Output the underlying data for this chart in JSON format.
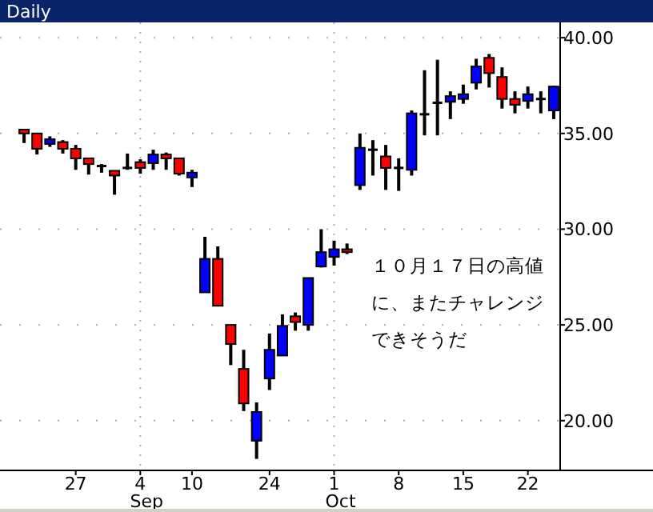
{
  "chart_data": {
    "type": "candlestick",
    "title": "Daily",
    "categories": [
      null,
      null,
      null,
      null,
      "27",
      null,
      null,
      null,
      null,
      "4 Sep",
      null,
      null,
      null,
      "10",
      null,
      null,
      null,
      null,
      null,
      "24",
      null,
      null,
      null,
      null,
      "1 Oct",
      null,
      null,
      null,
      null,
      "8",
      null,
      null,
      null,
      null,
      "15",
      null,
      null,
      null,
      null,
      "22",
      null,
      null
    ],
    "ohlc": [
      [
        35.2,
        35.2,
        34.5,
        35.0
      ],
      [
        35.0,
        35.0,
        33.9,
        34.2
      ],
      [
        34.45,
        34.85,
        34.3,
        34.7
      ],
      [
        34.55,
        34.65,
        33.95,
        34.2
      ],
      [
        34.2,
        34.4,
        33.1,
        33.7
      ],
      [
        33.7,
        33.7,
        32.85,
        33.4
      ],
      [
        33.3,
        33.4,
        32.95,
        33.3
      ],
      [
        33.05,
        33.05,
        31.8,
        32.8
      ],
      [
        33.2,
        33.95,
        33.1,
        33.2
      ],
      [
        33.5,
        33.65,
        32.9,
        33.2
      ],
      [
        33.45,
        34.15,
        33.1,
        33.9
      ],
      [
        33.9,
        34.0,
        33.1,
        33.7
      ],
      [
        33.7,
        33.7,
        32.8,
        32.9
      ],
      [
        32.7,
        33.1,
        32.2,
        32.95
      ],
      [
        26.7,
        29.6,
        26.7,
        28.45
      ],
      [
        28.45,
        29.1,
        26.0,
        26.0
      ],
      [
        25.0,
        25.0,
        22.9,
        24.0
      ],
      [
        22.7,
        23.7,
        20.5,
        20.9
      ],
      [
        18.95,
        20.95,
        18.0,
        20.45
      ],
      [
        22.2,
        24.55,
        21.6,
        23.7
      ],
      [
        23.4,
        25.55,
        23.4,
        24.95
      ],
      [
        25.45,
        25.65,
        24.7,
        25.15
      ],
      [
        25.0,
        27.45,
        24.7,
        27.45
      ],
      [
        28.05,
        30.0,
        28.0,
        28.8
      ],
      [
        28.55,
        29.4,
        28.1,
        28.95
      ],
      [
        28.95,
        29.25,
        28.7,
        28.8
      ],
      [
        32.3,
        35.0,
        32.05,
        34.25
      ],
      [
        34.15,
        34.65,
        32.8,
        34.15
      ],
      [
        33.8,
        34.4,
        32.05,
        33.2
      ],
      [
        33.2,
        33.7,
        32.0,
        33.2
      ],
      [
        33.1,
        36.2,
        32.8,
        36.05
      ],
      [
        36.0,
        38.3,
        34.9,
        36.0
      ],
      [
        36.6,
        38.85,
        34.9,
        36.6
      ],
      [
        36.65,
        37.2,
        35.75,
        36.95
      ],
      [
        36.8,
        37.55,
        36.55,
        37.05
      ],
      [
        37.65,
        38.9,
        37.3,
        38.5
      ],
      [
        38.95,
        39.15,
        37.4,
        38.15
      ],
      [
        37.95,
        38.45,
        36.3,
        36.8
      ],
      [
        36.8,
        37.2,
        36.05,
        36.5
      ],
      [
        36.7,
        37.45,
        36.3,
        37.05
      ],
      [
        36.8,
        37.2,
        36.05,
        36.8
      ],
      [
        36.2,
        37.5,
        35.75,
        37.45
      ]
    ],
    "colors": [
      "#ff0000",
      "#ff0000",
      "#0000ff",
      "#ff0000",
      "#ff0000",
      "#ff0000",
      "#000000",
      "#ff0000",
      "#000000",
      "#ff0000",
      "#0000ff",
      "#ff0000",
      "#ff0000",
      "#0000ff",
      "#0000ff",
      "#ff0000",
      "#ff0000",
      "#ff0000",
      "#0000ff",
      "#0000ff",
      "#0000ff",
      "#ff0000",
      "#0000ff",
      "#0000ff",
      "#0000ff",
      "#ff0000",
      "#0000ff",
      "#000000",
      "#ff0000",
      "#000000",
      "#0000ff",
      "#000000",
      "#000000",
      "#0000ff",
      "#0000ff",
      "#0000ff",
      "#ff0000",
      "#ff0000",
      "#ff0000",
      "#0000ff",
      "#000000",
      "#0000ff"
    ],
    "ylim": [
      17.4,
      40.8
    ],
    "yticks": [
      {
        "value": 20,
        "label": "20.00"
      },
      {
        "value": 25,
        "label": "25.00"
      },
      {
        "value": 30,
        "label": "30.00"
      },
      {
        "value": 35,
        "label": "35.00"
      },
      {
        "value": 40,
        "label": "40.00"
      }
    ],
    "grid": "y",
    "ref_lines": [
      {
        "axis": "x",
        "value": "4 Sep",
        "color": "#b0b0b0",
        "line_style": "dotted"
      },
      {
        "axis": "x",
        "value": "1 Oct",
        "color": "#b0b0b0",
        "line_style": "dotted"
      }
    ],
    "annotations": [
      "１０月１７日の高値に、またチャレンジできそうだ"
    ]
  }
}
